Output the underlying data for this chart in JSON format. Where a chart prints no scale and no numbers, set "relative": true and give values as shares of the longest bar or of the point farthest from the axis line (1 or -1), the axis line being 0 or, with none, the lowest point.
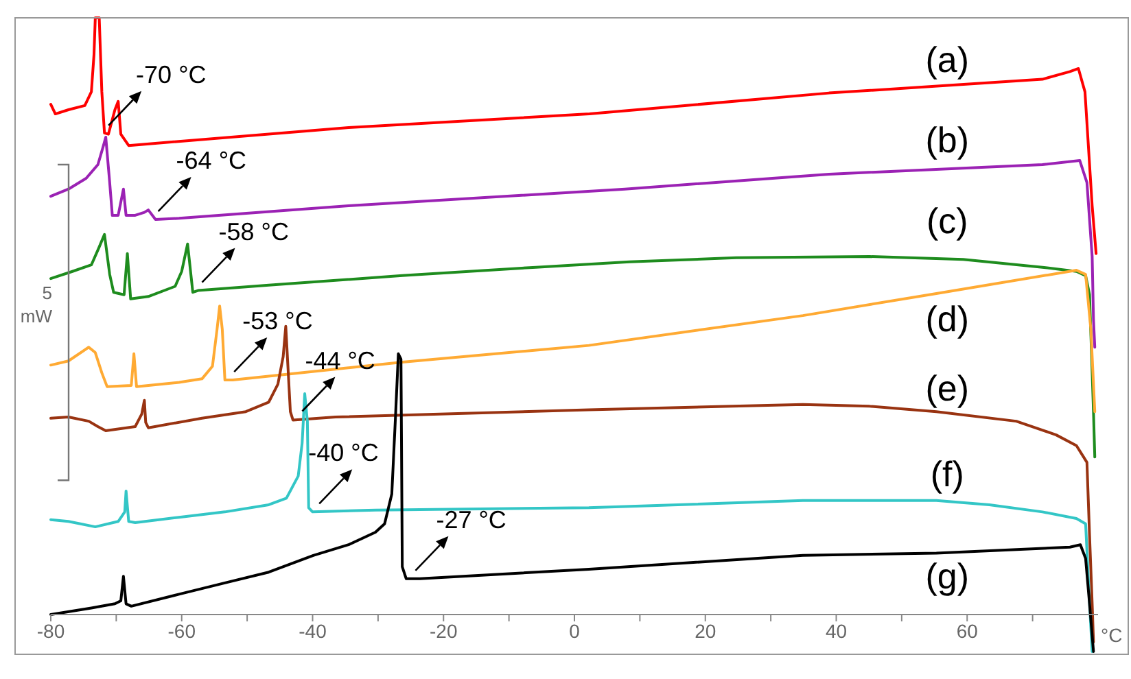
{
  "chart_data": {
    "type": "line",
    "relative": true,
    "xlabel": "°C",
    "xlim": [
      -80,
      80
    ],
    "xticks": [
      -80,
      {
        "value": -70,
        "label": null
      },
      -60,
      {
        "value": -50,
        "label": null
      },
      -40,
      {
        "value": -30,
        "label": null
      },
      -20,
      {
        "value": -10,
        "label": null
      },
      0,
      {
        "value": 10,
        "label": null
      },
      20,
      {
        "value": 30,
        "label": null
      },
      40,
      {
        "value": 50,
        "label": null
      },
      60,
      {
        "value": 70,
        "label": null
      }
    ],
    "series": [
      {
        "name": "(a)",
        "color": "#ff0000",
        "x": [
          -80,
          -79.3,
          -77.3,
          -74.8,
          -73.8,
          -73.4,
          -73.2,
          -72.6,
          -72.2,
          -71.8,
          -71.2,
          -70.2,
          -69.7,
          -69.3,
          -68.1,
          -34.5,
          2.3,
          38.9,
          71.5,
          75.7,
          77.0,
          78.0,
          79.1,
          79.7
        ],
        "values": [
          0.855,
          0.839,
          0.846,
          0.853,
          0.876,
          0.938,
          1.0,
          1.0,
          0.876,
          0.807,
          0.805,
          0.846,
          0.86,
          0.805,
          0.786,
          0.816,
          0.839,
          0.874,
          0.897,
          0.91,
          0.915,
          0.876,
          0.685,
          0.605
        ]
      },
      {
        "name": "(b)",
        "color": "#9b22b4",
        "x": [
          -80,
          -77.3,
          -74.6,
          -72.8,
          -72.0,
          -71.6,
          -71.0,
          -70.6,
          -69.7,
          -68.9,
          -68.5,
          -67.1,
          -65.7,
          -65.1,
          -64.0,
          -60.4,
          -34.5,
          7.7,
          38.9,
          71.5,
          77.2,
          78.3,
          79.1,
          79.3,
          79.5
        ],
        "values": [
          0.701,
          0.713,
          0.731,
          0.754,
          0.784,
          0.8,
          0.724,
          0.669,
          0.669,
          0.713,
          0.669,
          0.669,
          0.674,
          0.678,
          0.662,
          0.664,
          0.685,
          0.713,
          0.738,
          0.754,
          0.761,
          0.724,
          0.6,
          0.494,
          0.448
        ]
      },
      {
        "name": "(c)",
        "color": "#1e8c1e",
        "x": [
          -80,
          -76.7,
          -73.8,
          -72.6,
          -71.8,
          -71.0,
          -70.4,
          -68.8,
          -68.3,
          -67.8,
          -65.1,
          -61.0,
          -60.0,
          -59.1,
          -58.3,
          -57.5,
          -46.7,
          -26.3,
          -5.9,
          8.4,
          24.7,
          45.1,
          59.4,
          71.5,
          76.7,
          78.1,
          78.7,
          79.3,
          79.5
        ],
        "values": [
          0.563,
          0.575,
          0.586,
          0.616,
          0.637,
          0.57,
          0.54,
          0.536,
          0.605,
          0.529,
          0.533,
          0.55,
          0.575,
          0.621,
          0.54,
          0.543,
          0.552,
          0.568,
          0.582,
          0.591,
          0.598,
          0.6,
          0.595,
          0.582,
          0.575,
          0.568,
          0.536,
          0.34,
          0.264
        ]
      },
      {
        "name": "(d)",
        "color": "#ffaa33",
        "x": [
          -80,
          -77.3,
          -74.2,
          -73.2,
          -72.2,
          -71.4,
          -67.7,
          -67.3,
          -66.9,
          -60.4,
          -56.9,
          -55.3,
          -54.6,
          -54.2,
          -53.8,
          -53.4,
          -52.2,
          -26.3,
          2.2,
          34.9,
          55.3,
          76.7,
          78.1,
          78.9,
          79.5
        ],
        "values": [
          0.418,
          0.425,
          0.448,
          0.439,
          0.405,
          0.382,
          0.384,
          0.437,
          0.382,
          0.389,
          0.395,
          0.416,
          0.478,
          0.517,
          0.478,
          0.393,
          0.393,
          0.423,
          0.451,
          0.501,
          0.538,
          0.577,
          0.57,
          0.478,
          0.34
        ]
      },
      {
        "name": "(e)",
        "color": "#993311",
        "x": [
          -80,
          -77.3,
          -74.2,
          -72.8,
          -71.6,
          -67.1,
          -66.1,
          -65.7,
          -65.5,
          -65.1,
          -56.9,
          -50.2,
          -46.7,
          -45.3,
          -44.5,
          -44.1,
          -43.4,
          -43.0,
          -36.5,
          2.2,
          34.9,
          45.1,
          55.3,
          67.5,
          73.6,
          76.7,
          78.3,
          78.7,
          79.1,
          79.3
        ],
        "values": [
          0.329,
          0.331,
          0.324,
          0.315,
          0.308,
          0.315,
          0.336,
          0.359,
          0.322,
          0.313,
          0.329,
          0.34,
          0.356,
          0.386,
          0.432,
          0.483,
          0.34,
          0.326,
          0.331,
          0.343,
          0.352,
          0.349,
          0.34,
          0.324,
          0.301,
          0.283,
          0.255,
          0.133,
          0.018,
          -0.046
        ]
      },
      {
        "name": "(f)",
        "color": "#33c6c6",
        "x": [
          -80,
          -77.3,
          -73.2,
          -69.7,
          -68.7,
          -68.5,
          -68.1,
          -67.1,
          -60.4,
          -53.4,
          -46.7,
          -44.0,
          -42.2,
          -41.6,
          -41.2,
          -40.8,
          -40.6,
          -40.0,
          -30.4,
          2.2,
          34.9,
          55.3,
          63.4,
          71.5,
          76.7,
          78.1,
          78.7,
          79.1
        ],
        "values": [
          0.159,
          0.156,
          0.147,
          0.156,
          0.172,
          0.207,
          0.156,
          0.154,
          0.163,
          0.172,
          0.184,
          0.195,
          0.232,
          0.287,
          0.37,
          0.324,
          0.179,
          0.172,
          0.175,
          0.179,
          0.191,
          0.191,
          0.184,
          0.172,
          0.161,
          0.152,
          0.018,
          -0.062
        ]
      },
      {
        "name": "(g)",
        "color": "#000000",
        "x": [
          -80,
          -73.8,
          -70.2,
          -69.3,
          -68.9,
          -68.5,
          -67.7,
          -60.4,
          -53.4,
          -46.7,
          -39.9,
          -34.5,
          -30.4,
          -29.0,
          -27.9,
          -27.3,
          -26.9,
          -26.5,
          -26.3,
          -25.7,
          -23.6,
          2.2,
          34.9,
          55.3,
          75.7,
          77.3,
          78.1,
          78.7,
          79.3
        ],
        "values": [
          0.0,
          0.011,
          0.018,
          0.023,
          0.064,
          0.018,
          0.014,
          0.034,
          0.053,
          0.071,
          0.099,
          0.117,
          0.138,
          0.152,
          0.202,
          0.34,
          0.437,
          0.428,
          0.08,
          0.06,
          0.06,
          0.076,
          0.099,
          0.103,
          0.113,
          0.117,
          0.094,
          0.018,
          -0.062
        ]
      }
    ],
    "annotations": [
      "5 mW",
      {
        "text": "-70 °C",
        "x": -71.6,
        "y": 0.806
      },
      {
        "text": "-64 °C",
        "x": -64.0,
        "y": 0.662
      },
      {
        "text": "-58 °C",
        "x": -57.3,
        "y": 0.543
      },
      {
        "text": "-53 °C",
        "x": -52.4,
        "y": 0.393
      },
      {
        "text": "-44 °C",
        "x": -42.0,
        "y": 0.327
      },
      {
        "text": "-40 °C",
        "x": -39.4,
        "y": 0.172
      },
      {
        "text": "-27 °C",
        "x": -24.7,
        "y": 0.06
      }
    ]
  }
}
